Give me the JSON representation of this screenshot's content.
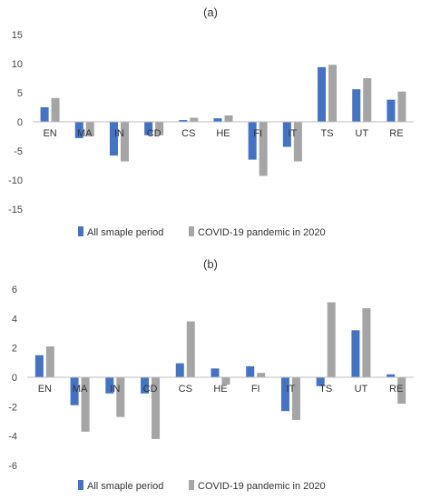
{
  "chart_data": [
    {
      "type": "bar",
      "title": "(a)",
      "categories": [
        "EN",
        "MA",
        "IN",
        "CD",
        "CS",
        "HE",
        "FI",
        "IT",
        "TS",
        "UT",
        "RE"
      ],
      "series": [
        {
          "name": "All smaple period",
          "values": [
            2.5,
            -2.8,
            -5.8,
            -2.3,
            0.3,
            0.6,
            -6.5,
            -4.3,
            9.4,
            5.6,
            3.8
          ]
        },
        {
          "name": "COVID-19 pandemic in 2020",
          "values": [
            4.1,
            -2.5,
            -6.8,
            -2.3,
            0.7,
            1.1,
            -9.3,
            -6.8,
            9.8,
            7.5,
            5.2
          ]
        }
      ],
      "ylim": [
        -15,
        15
      ],
      "yticks": [
        -15,
        -10,
        -5,
        0,
        5,
        10,
        15
      ],
      "xlabel": "",
      "ylabel": "",
      "grid": false,
      "legend": "bottom"
    },
    {
      "type": "bar",
      "title": "(b)",
      "categories": [
        "EN",
        "MA",
        "IN",
        "CD",
        "CS",
        "HE",
        "FI",
        "IT",
        "TS",
        "UT",
        "RE"
      ],
      "series": [
        {
          "name": "All smaple period",
          "values": [
            1.5,
            -1.9,
            -1.1,
            -1.1,
            0.95,
            0.6,
            0.75,
            -2.3,
            -0.6,
            3.2,
            0.2
          ]
        },
        {
          "name": "COVID-19 pandemic in 2020",
          "values": [
            2.1,
            -3.7,
            -2.7,
            -4.2,
            3.8,
            -0.5,
            0.3,
            -2.9,
            5.1,
            4.7,
            -1.8
          ]
        }
      ],
      "ylim": [
        -6,
        6
      ],
      "yticks": [
        -6,
        -4,
        -2,
        0,
        2,
        4,
        6
      ],
      "xlabel": "",
      "ylabel": "",
      "grid": false,
      "legend": "bottom"
    }
  ],
  "colors": {
    "series1": "#4472C4",
    "series2": "#A5A5A5",
    "axis": "#BFBFBF"
  }
}
